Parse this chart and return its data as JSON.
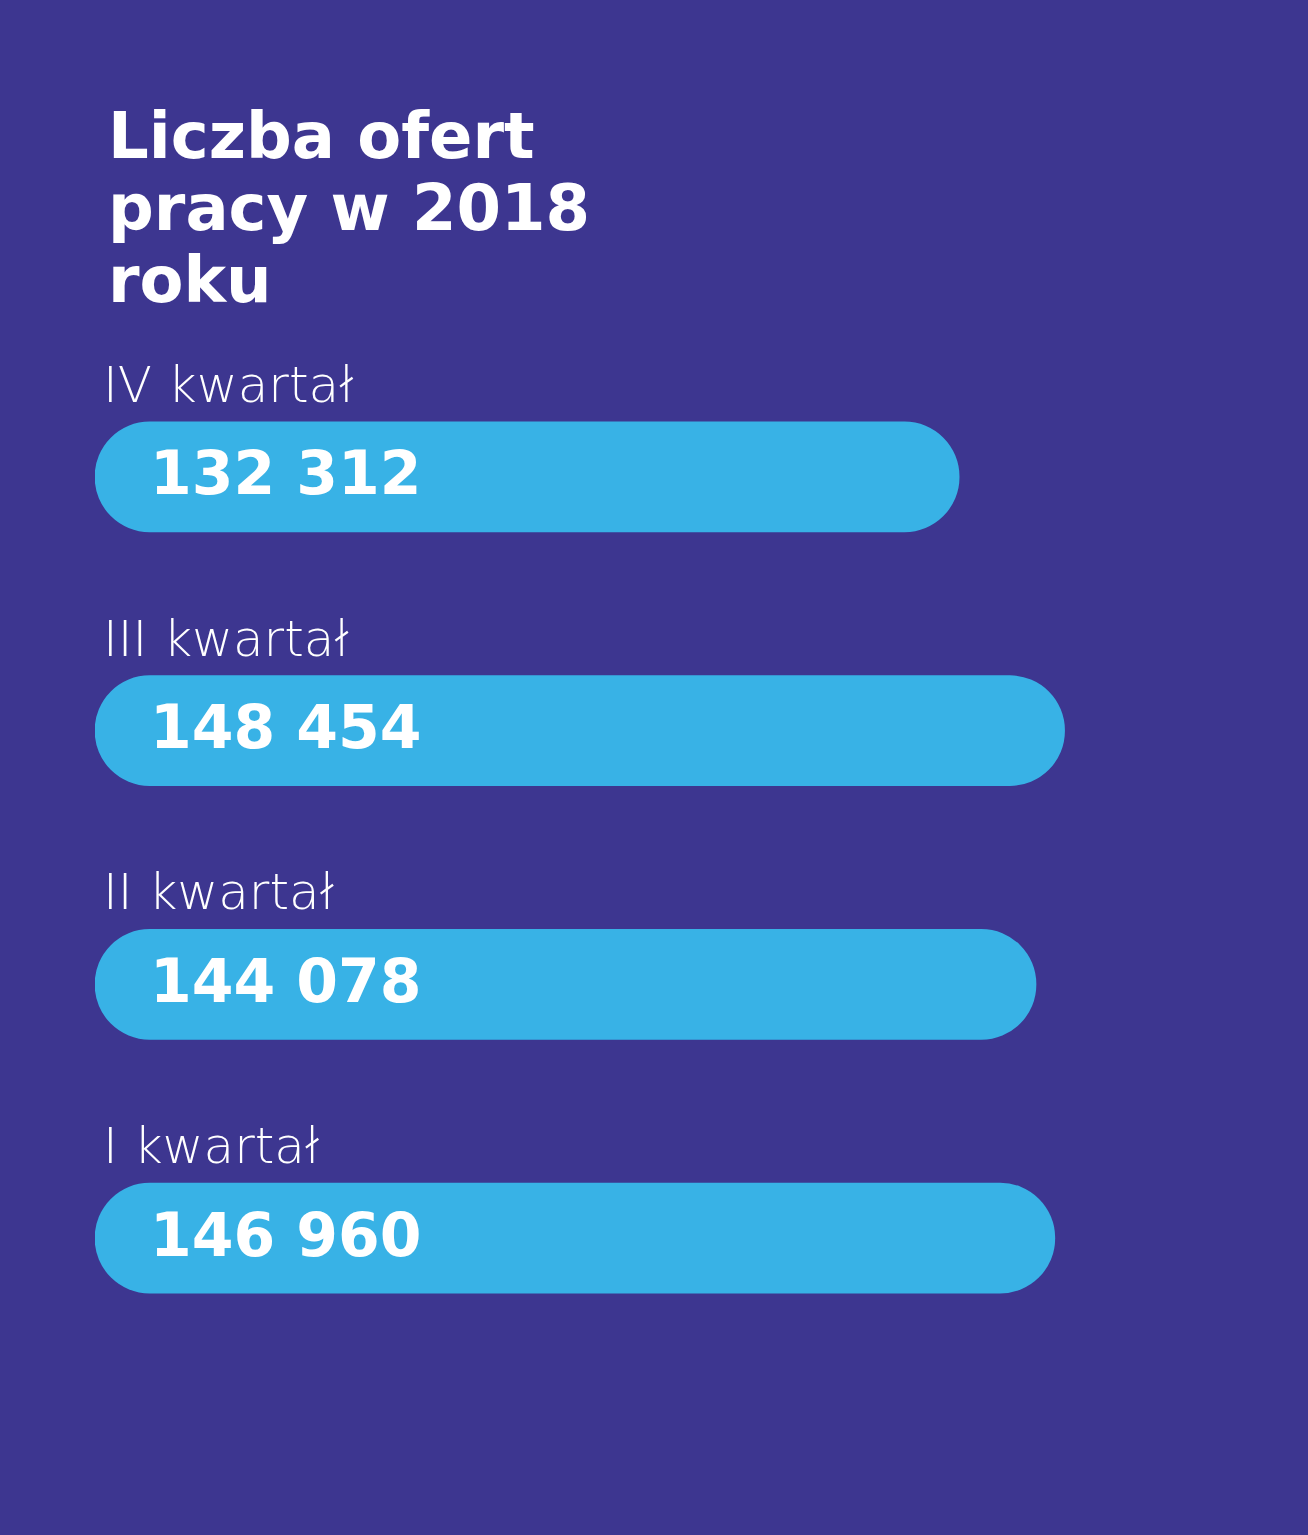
{
  "chart_data": {
    "type": "bar",
    "orientation": "horizontal",
    "title": "Liczba ofert pracy w 2018 roku",
    "categories": [
      "IV kwartał",
      "III kwartał",
      "II kwartał",
      "I kwartał"
    ],
    "values": [
      132312,
      148454,
      144078,
      146960
    ],
    "value_labels": [
      "132 312",
      "148 454",
      "144 078",
      "146 960"
    ],
    "color": "#38b2e6"
  }
}
